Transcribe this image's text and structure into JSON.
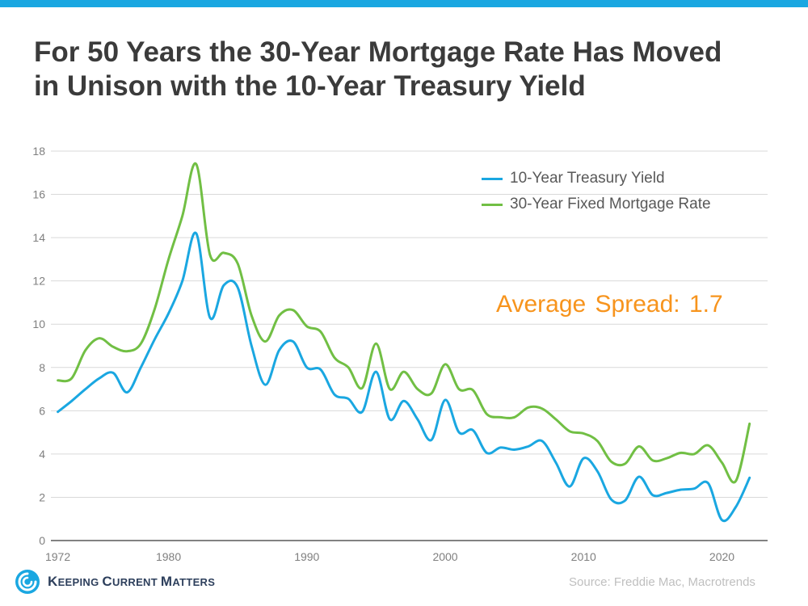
{
  "title_line1": "For 50 Years the 30-Year Mortgage Rate Has Moved",
  "title_line2": "in Unison with the 10-Year Treasury Yield",
  "annotation": "Average Spread: 1.7",
  "source": "Source: Freddie Mac, Macrotrends",
  "logo": {
    "text": "Keeping Current Matters"
  },
  "colors": {
    "treasury": "#1aa7e1",
    "mortgage": "#71bf44",
    "annotation": "#f7941d",
    "accent_bar": "#1aa7e1"
  },
  "chart_data": {
    "type": "line",
    "title": "For 50 Years the 30-Year Mortgage Rate Has Moved in Unison with the 10-Year Treasury Yield",
    "xlabel": "",
    "ylabel": "",
    "xlim": [
      1971.5,
      2023.3
    ],
    "ylim": [
      0,
      18
    ],
    "x_ticks": [
      1972,
      1980,
      1990,
      2000,
      2010,
      2020
    ],
    "y_ticks": [
      0,
      2,
      4,
      6,
      8,
      10,
      12,
      14,
      16,
      18
    ],
    "grid": "horizontal",
    "legend": "top-right",
    "x": [
      1972,
      1973,
      1974,
      1975,
      1976,
      1977,
      1978,
      1979,
      1980,
      1981,
      1982,
      1983,
      1984,
      1985,
      1986,
      1987,
      1988,
      1989,
      1990,
      1991,
      1992,
      1993,
      1994,
      1995,
      1996,
      1997,
      1998,
      1999,
      2000,
      2001,
      2002,
      2003,
      2004,
      2005,
      2006,
      2007,
      2008,
      2009,
      2010,
      2011,
      2012,
      2013,
      2014,
      2015,
      2016,
      2017,
      2018,
      2019,
      2020,
      2021,
      2022
    ],
    "series": [
      {
        "name": "10-Year Treasury Yield",
        "color": "#1aa7e1",
        "values": [
          5.95,
          6.45,
          7.0,
          7.5,
          7.75,
          6.85,
          8.0,
          9.3,
          10.5,
          12.0,
          14.2,
          10.3,
          11.8,
          11.7,
          9.0,
          7.2,
          8.8,
          9.2,
          8.0,
          7.9,
          6.75,
          6.55,
          5.95,
          7.8,
          5.6,
          6.45,
          5.6,
          4.65,
          6.5,
          5.0,
          5.1,
          4.05,
          4.3,
          4.2,
          4.35,
          4.6,
          3.6,
          2.5,
          3.8,
          3.2,
          1.9,
          1.85,
          2.95,
          2.1,
          2.2,
          2.35,
          2.4,
          2.65,
          0.95,
          1.55,
          2.9
        ]
      },
      {
        "name": "30-Year Fixed Mortgage Rate",
        "color": "#71bf44",
        "values": [
          7.4,
          7.5,
          8.8,
          9.35,
          8.95,
          8.75,
          9.1,
          10.7,
          13.0,
          15.0,
          17.4,
          13.2,
          13.3,
          12.8,
          10.4,
          9.2,
          10.4,
          10.65,
          9.9,
          9.65,
          8.45,
          8.0,
          7.05,
          9.1,
          7.0,
          7.8,
          7.0,
          6.8,
          8.15,
          7.0,
          6.95,
          5.85,
          5.7,
          5.7,
          6.15,
          6.1,
          5.6,
          5.05,
          4.95,
          4.6,
          3.65,
          3.55,
          4.35,
          3.7,
          3.8,
          4.05,
          4.0,
          4.4,
          3.6,
          2.75,
          5.4
        ]
      }
    ]
  }
}
